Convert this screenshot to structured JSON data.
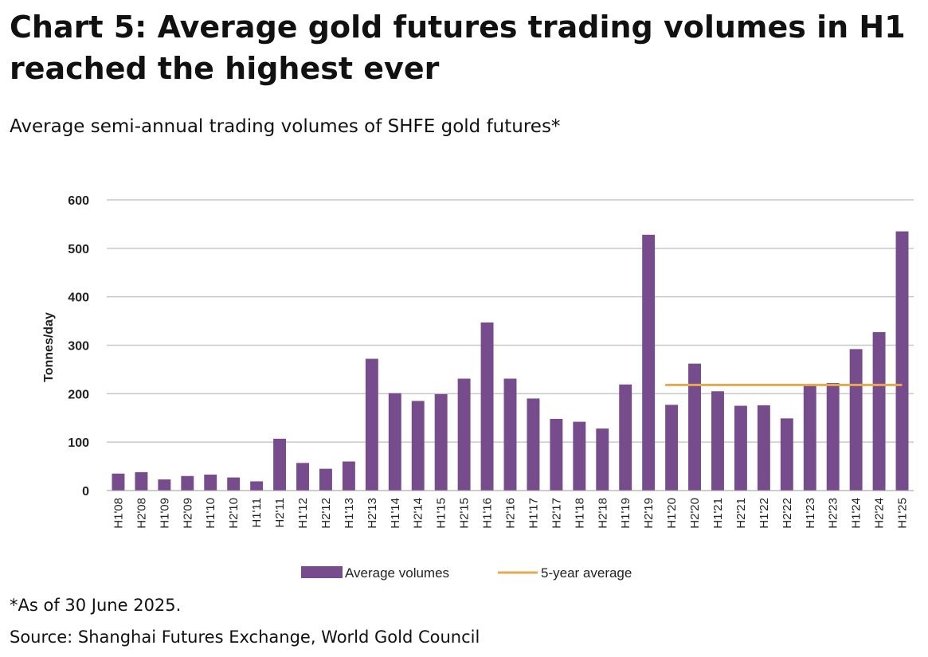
{
  "title": "Chart 5: Average gold futures trading volumes in H1 reached the highest ever",
  "subtitle": "Average semi-annual trading volumes of SHFE gold futures*",
  "footnote": "*As of 30 June 2025.",
  "source": "Source: Shanghai Futures Exchange, World Gold Council",
  "colors": {
    "bars": "#774C8C",
    "average_line": "#E5A94F",
    "grid": "#C8C8C8"
  },
  "chart_data": {
    "type": "bar",
    "ylabel": "Tonnes/day",
    "ylim": [
      0,
      600
    ],
    "yticks": [
      0,
      100,
      200,
      300,
      400,
      500,
      600
    ],
    "grid": true,
    "legend_position": "bottom",
    "categories": [
      "H1'08",
      "H2'08",
      "H1'09",
      "H2'09",
      "H1'10",
      "H2'10",
      "H1'11",
      "H2'11",
      "H1'12",
      "H2'12",
      "H1'13",
      "H2'13",
      "H1'14",
      "H2'14",
      "H1'15",
      "H2'15",
      "H1'16",
      "H2'16",
      "H1'17",
      "H2'17",
      "H1'18",
      "H2'18",
      "H1'19",
      "H2'19",
      "H1'20",
      "H2'20",
      "H1'21",
      "H2'21",
      "H1'22",
      "H2'22",
      "H1'23",
      "H2'23",
      "H1'24",
      "H2'24",
      "H1'25"
    ],
    "series": [
      {
        "name": "Average volumes",
        "kind": "bar",
        "values": [
          35,
          38,
          23,
          30,
          33,
          27,
          19,
          107,
          57,
          45,
          60,
          272,
          201,
          185,
          199,
          231,
          347,
          231,
          190,
          148,
          142,
          128,
          219,
          528,
          177,
          262,
          205,
          175,
          176,
          149,
          218,
          222,
          292,
          327,
          535
        ]
      },
      {
        "name": "5-year average",
        "kind": "line",
        "value": 218,
        "from": "H1'20",
        "to": "H1'25"
      }
    ]
  }
}
